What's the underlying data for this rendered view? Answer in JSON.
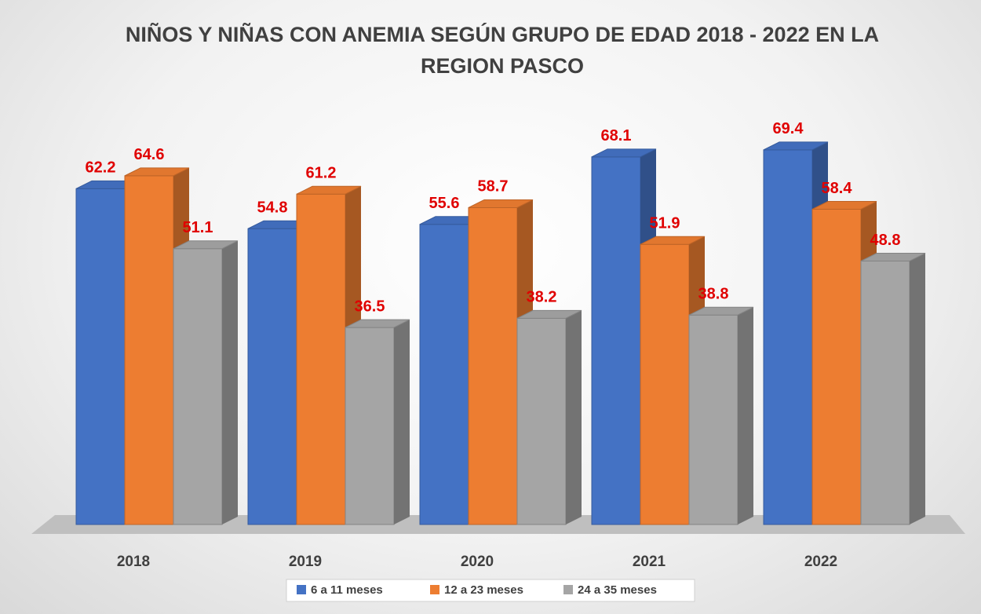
{
  "chart_data": {
    "type": "bar3d",
    "title": "NIÑOS Y NIÑAS CON ANEMIA SEGÚN GRUPO DE EDAD 2018 - 2022 EN LA REGION PASCO",
    "categories": [
      "2018",
      "2019",
      "2020",
      "2021",
      "2022"
    ],
    "series": [
      {
        "name": "6 a 11 meses",
        "color": "#4472c4",
        "values": [
          62.2,
          54.8,
          55.6,
          68.1,
          69.4
        ]
      },
      {
        "name": "12 a 23 meses",
        "color": "#ed7d31",
        "values": [
          64.6,
          61.2,
          58.7,
          51.9,
          58.4
        ]
      },
      {
        "name": "24 a 35 meses",
        "color": "#a5a5a5",
        "values": [
          51.1,
          36.5,
          38.2,
          38.8,
          48.8
        ]
      }
    ],
    "ylim": [
      0,
      80
    ],
    "label_color": "#e00000"
  }
}
